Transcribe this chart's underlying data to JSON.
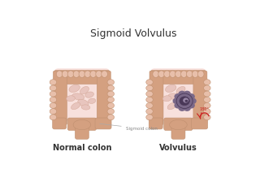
{
  "title": "Sigmoid Volvulus",
  "label_left": "Normal colon",
  "label_right": "Volvulus",
  "label_sigmoid": "Sigmoid colon",
  "label_angle": "180°",
  "bg_color": "#ffffff",
  "colon_fill": "#d4a080",
  "colon_light": "#e8bfaa",
  "colon_shade": "#c09070",
  "inner_fill": "#f8e0dc",
  "inner_loop": "#e8c5be",
  "inner_loop_edge": "#d4a898",
  "volvulus_fill": "#7a6888",
  "volvulus_dark": "#4a3858",
  "volvulus_mid": "#9a88a8",
  "arrow_color": "#cc2222",
  "text_color": "#333333",
  "annot_color": "#888888",
  "title_fs": 9,
  "label_fs": 7,
  "small_fs": 3.5
}
